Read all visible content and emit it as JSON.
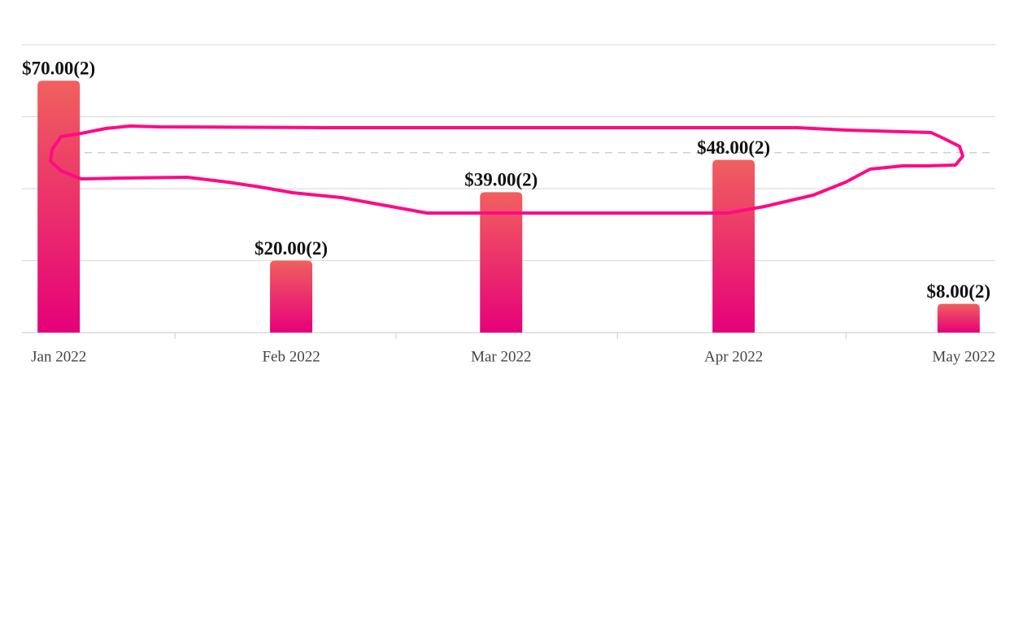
{
  "chart_data": {
    "type": "bar",
    "x": [
      "2022-01",
      "2022-02",
      "2022-03",
      "2022-04",
      "2022-05"
    ],
    "values": [
      70,
      20,
      39,
      48,
      8
    ],
    "value_labels": [
      "$70.00(2)",
      "$20.00(2)",
      "$39.00(2)",
      "$48.00(2)",
      "$8.00(2)"
    ],
    "xticks": [
      {
        "value": "2022-01",
        "label": "Jan 2022"
      },
      {
        "value": "2022-02",
        "label": "Feb 2022"
      },
      {
        "value": "2022-03",
        "label": "Mar 2022"
      },
      {
        "value": "2022-04",
        "label": "Apr 2022"
      },
      {
        "value": "2022-05",
        "label": "May 2022"
      }
    ],
    "ylim": [
      0,
      80
    ],
    "yticks": [
      0,
      20,
      40,
      60,
      80
    ],
    "grid": true,
    "reference_line": 50,
    "colors": [
      "#f0605e",
      "#e6007a"
    ]
  }
}
